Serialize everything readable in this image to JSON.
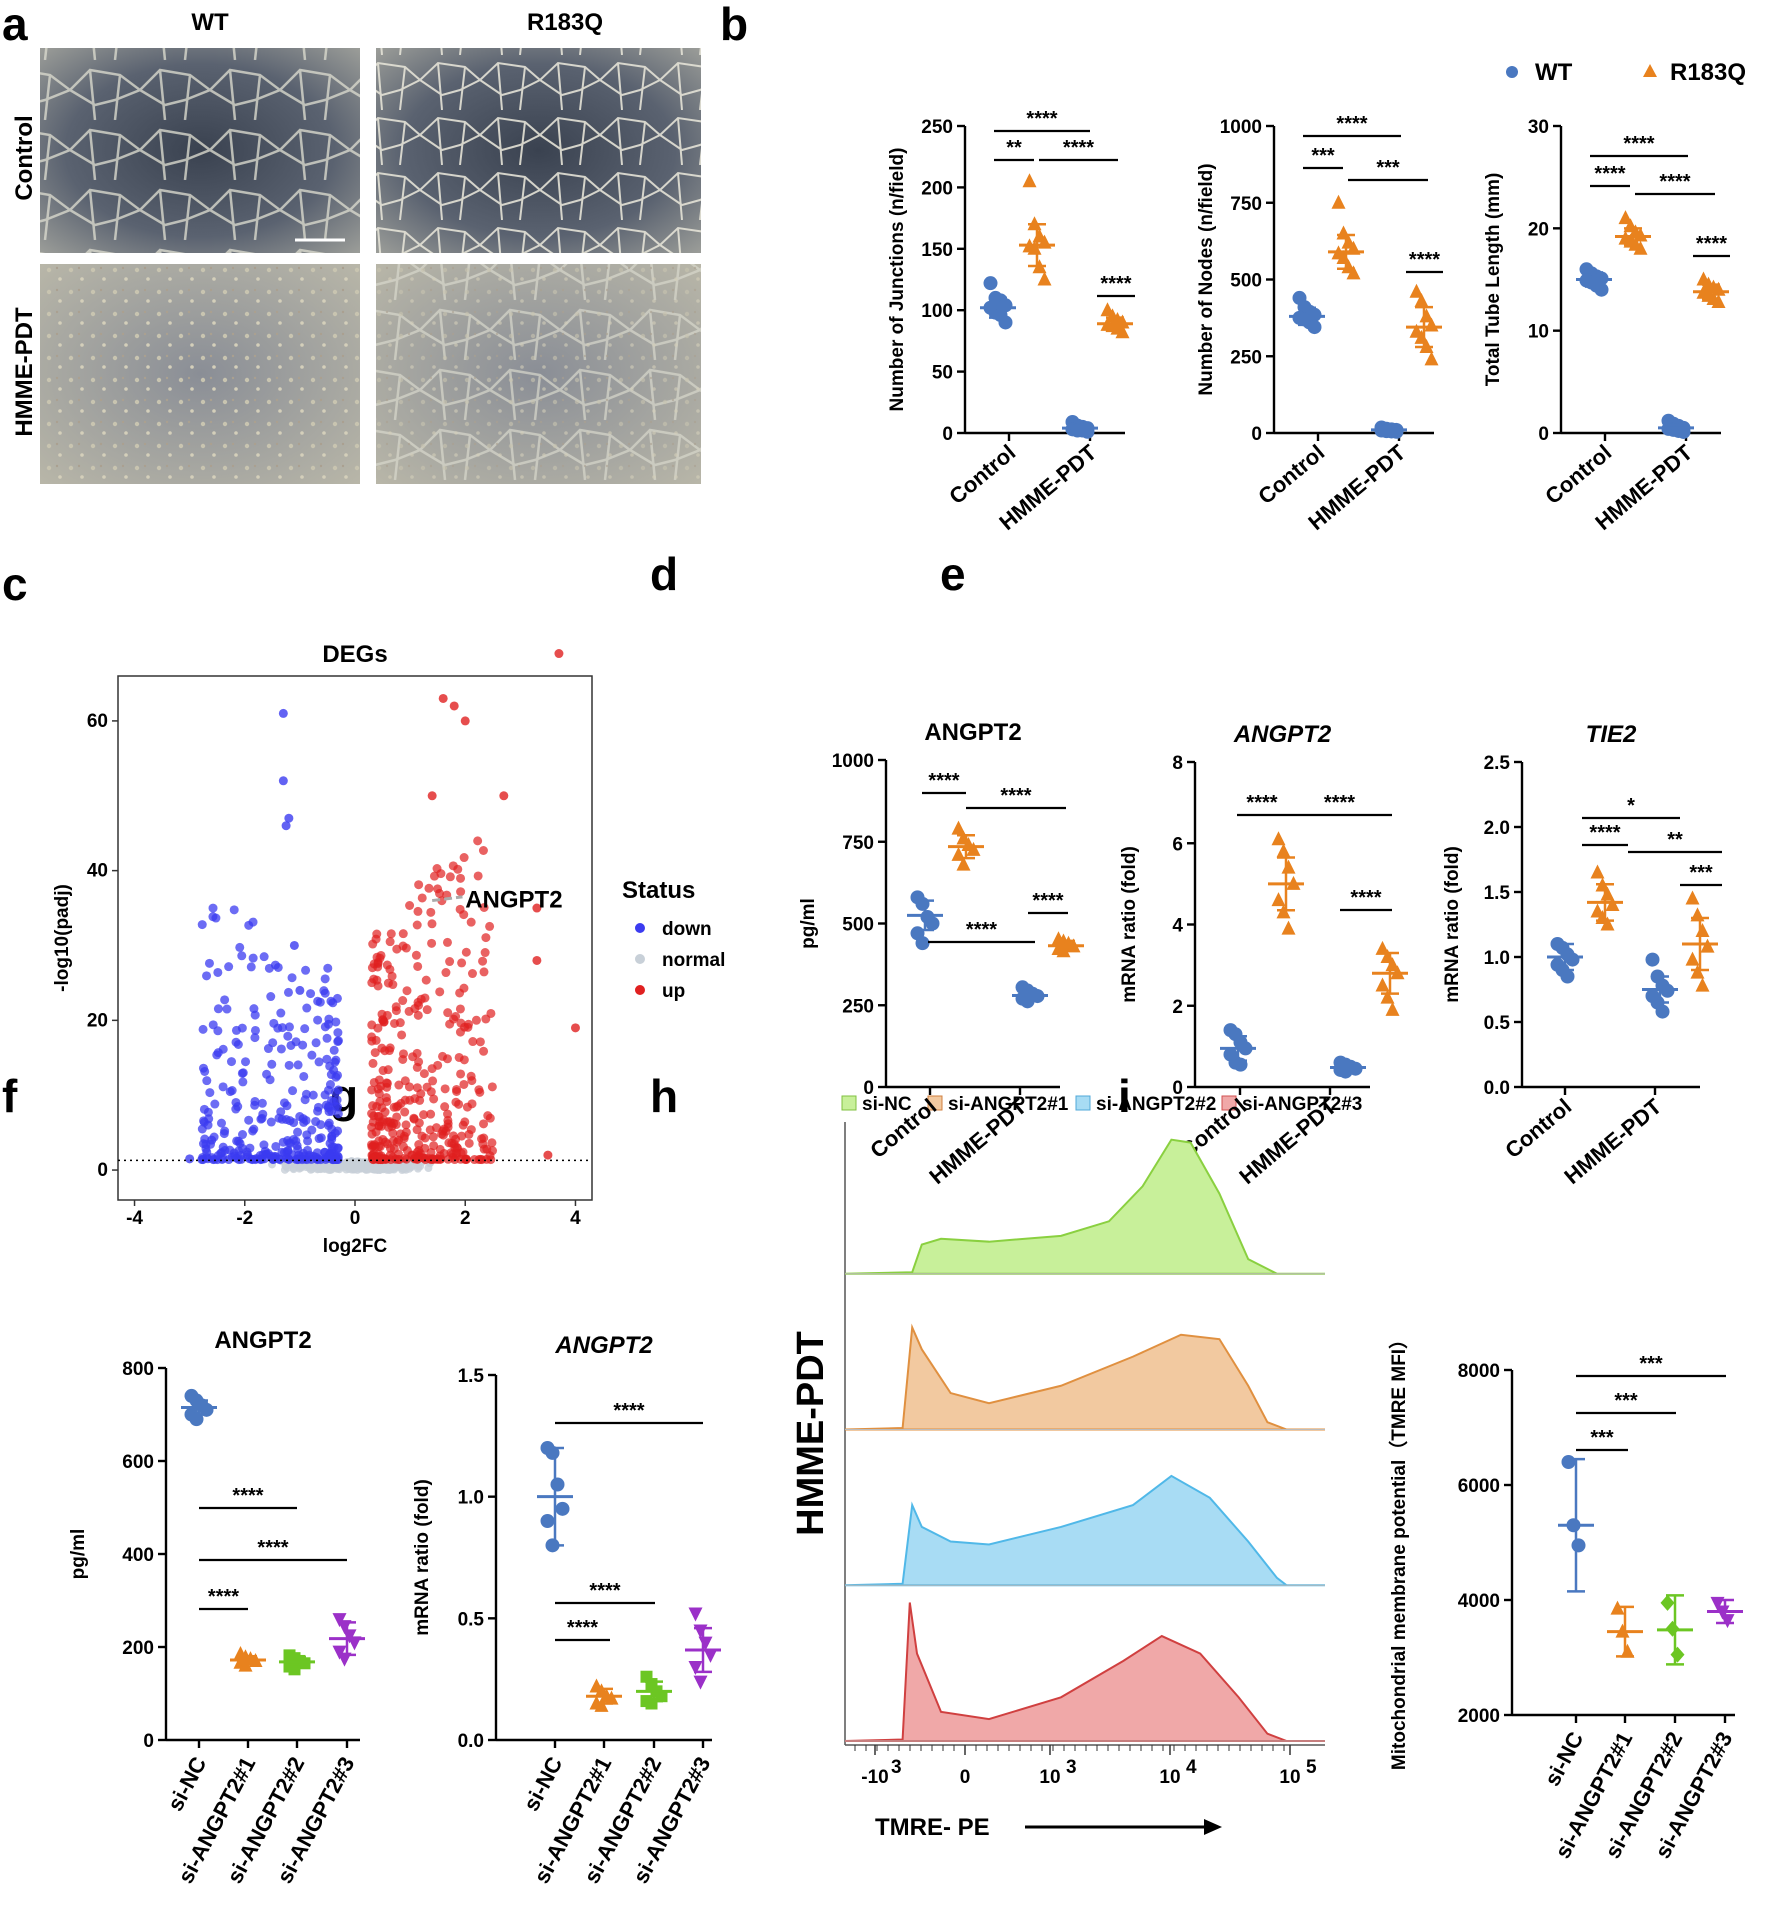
{
  "panel_labels": [
    "a",
    "b",
    "c",
    "d",
    "e",
    "f",
    "g",
    "h",
    "i"
  ],
  "colors": {
    "wt": "#4a78c0",
    "r183q": "#e8821e",
    "si_nc": "#4a78c0",
    "si1": "#e8821e",
    "si2": "#6cc623",
    "si3": "#9b30c8",
    "down": "#3b3bf0",
    "up": "#e02020",
    "normal": "#c8d0d8"
  },
  "micrographs": {
    "col_titles": [
      "WT",
      "R183Q"
    ],
    "row_titles": [
      "Control",
      "HMME-PDT"
    ]
  },
  "legend_b": {
    "wt": "WT",
    "r183q": "R183Q"
  },
  "legend_h": [
    "si-NC",
    "si-ANGPT2#1",
    "si-ANGPT2#2",
    "si-ANGPT2#3"
  ],
  "chart_data": [
    {
      "id": "b1",
      "type": "scatter",
      "title": "",
      "ylabel": "Number of Junctions (n/field)",
      "categories": [
        "Control",
        "HMME-PDT"
      ],
      "ylim": [
        0,
        250
      ],
      "yticks": [
        0,
        50,
        100,
        150,
        200,
        250
      ],
      "series": [
        {
          "name": "WT",
          "group": 0,
          "mean": 102,
          "sd": 8,
          "points": [
            122,
            110,
            108,
            104,
            102,
            98,
            96,
            90
          ]
        },
        {
          "name": "R183Q",
          "group": 0,
          "mean": 153,
          "sd": 17,
          "points": [
            205,
            170,
            160,
            155,
            152,
            150,
            135,
            125
          ]
        },
        {
          "name": "WT",
          "group": 1,
          "mean": 4,
          "sd": 2,
          "points": [
            9,
            6,
            5,
            4,
            3,
            2,
            2,
            1
          ]
        },
        {
          "name": "R183Q",
          "group": 1,
          "mean": 89,
          "sd": 5,
          "points": [
            100,
            95,
            92,
            90,
            88,
            87,
            85,
            82
          ]
        }
      ],
      "sig": [
        {
          "label": "**"
        },
        {
          "label": "****"
        },
        {
          "label": "****"
        },
        {
          "label": "****"
        }
      ]
    },
    {
      "id": "b2",
      "type": "scatter",
      "title": "",
      "ylabel": "Number of Nodes (n/field)",
      "categories": [
        "Control",
        "HMME-PDT"
      ],
      "ylim": [
        0,
        1000
      ],
      "yticks": [
        0,
        250,
        500,
        750,
        1000
      ],
      "series": [
        {
          "name": "WT",
          "group": 0,
          "mean": 380,
          "sd": 28,
          "points": [
            440,
            410,
            395,
            385,
            375,
            370,
            360,
            345
          ]
        },
        {
          "name": "R183Q",
          "group": 0,
          "mean": 590,
          "sd": 55,
          "points": [
            750,
            650,
            620,
            600,
            585,
            570,
            540,
            520
          ]
        },
        {
          "name": "WT",
          "group": 1,
          "mean": 10,
          "sd": 5,
          "points": [
            18,
            14,
            12,
            10,
            8,
            6,
            5,
            4
          ]
        },
        {
          "name": "R183Q",
          "group": 1,
          "mean": 345,
          "sd": 65,
          "points": [
            460,
            430,
            380,
            350,
            330,
            310,
            280,
            240
          ]
        }
      ],
      "sig": [
        {
          "label": "***"
        },
        {
          "label": "****"
        },
        {
          "label": "***"
        },
        {
          "label": "****"
        }
      ]
    },
    {
      "id": "b3",
      "type": "scatter",
      "title": "",
      "ylabel": "Total Tube Length (mm)",
      "categories": [
        "Control",
        "HMME-PDT"
      ],
      "ylim": [
        0,
        30
      ],
      "yticks": [
        0,
        10,
        20,
        30
      ],
      "series": [
        {
          "name": "WT",
          "group": 0,
          "mean": 15,
          "sd": 0.7,
          "points": [
            16,
            15.6,
            15.3,
            15.1,
            14.9,
            14.7,
            14.4,
            14
          ]
        },
        {
          "name": "R183Q",
          "group": 0,
          "mean": 19.2,
          "sd": 0.8,
          "points": [
            21,
            20.2,
            19.6,
            19.3,
            19,
            18.7,
            18.4,
            18
          ]
        },
        {
          "name": "WT",
          "group": 1,
          "mean": 0.5,
          "sd": 0.3,
          "points": [
            1.2,
            0.9,
            0.7,
            0.5,
            0.4,
            0.3,
            0.2,
            0.1
          ]
        },
        {
          "name": "R183Q",
          "group": 1,
          "mean": 13.8,
          "sd": 0.7,
          "points": [
            15,
            14.5,
            14.2,
            14,
            13.7,
            13.4,
            13.1,
            12.8
          ]
        }
      ],
      "sig": [
        {
          "label": "****"
        },
        {
          "label": "****"
        },
        {
          "label": "****"
        },
        {
          "label": "****"
        }
      ]
    },
    {
      "id": "c",
      "type": "scatter",
      "title": "DEGs",
      "xlabel": "log2FC",
      "ylabel": "-log10(padj)",
      "xlim": [
        -4.3,
        4.3
      ],
      "ylim": [
        -4,
        66
      ],
      "xticks": [
        -4,
        -2,
        0,
        2,
        4
      ],
      "yticks": [
        0,
        20,
        40,
        60
      ],
      "legend_title": "Status",
      "legend": [
        "down",
        "normal",
        "up"
      ],
      "annotation": "ANGPT2",
      "threshold": 1.3
    },
    {
      "id": "d",
      "type": "scatter",
      "title": "ANGPT2",
      "ylabel": "pg/ml",
      "categories": [
        "Control",
        "HMME-PDT"
      ],
      "ylim": [
        0,
        1000
      ],
      "yticks": [
        0,
        250,
        500,
        750,
        1000
      ],
      "series": [
        {
          "name": "WT",
          "group": 0,
          "mean": 525,
          "sd": 45,
          "points": [
            580,
            560,
            520,
            500,
            470,
            440
          ]
        },
        {
          "name": "R183Q",
          "group": 0,
          "mean": 735,
          "sd": 35,
          "points": [
            790,
            760,
            740,
            725,
            710,
            680
          ]
        },
        {
          "name": "WT",
          "group": 1,
          "mean": 280,
          "sd": 15,
          "points": [
            305,
            295,
            285,
            278,
            270,
            262
          ]
        },
        {
          "name": "R183Q",
          "group": 1,
          "mean": 432,
          "sd": 15,
          "points": [
            452,
            445,
            438,
            430,
            422,
            415
          ]
        }
      ],
      "sig": [
        {
          "label": "****"
        },
        {
          "label": "****"
        },
        {
          "label": "****"
        },
        {
          "label": "****"
        }
      ]
    },
    {
      "id": "e1",
      "type": "scatter",
      "title": "ANGPT2",
      "ylabel": "mRNA ratio (fold)",
      "categories": [
        "Control",
        "HMME-PDT"
      ],
      "ylim": [
        0,
        8
      ],
      "yticks": [
        0,
        2,
        4,
        6,
        8
      ],
      "series": [
        {
          "name": "WT",
          "group": 0,
          "mean": 0.95,
          "sd": 0.3,
          "points": [
            1.4,
            1.3,
            1.1,
            0.95,
            0.8,
            0.6,
            0.55
          ]
        },
        {
          "name": "R183Q",
          "group": 0,
          "mean": 5.0,
          "sd": 0.65,
          "points": [
            6.1,
            5.8,
            5.4,
            5.0,
            4.6,
            4.3,
            3.9
          ]
        },
        {
          "name": "WT",
          "group": 1,
          "mean": 0.48,
          "sd": 0.08,
          "points": [
            0.6,
            0.55,
            0.5,
            0.45,
            0.42,
            0.38
          ]
        },
        {
          "name": "R183Q",
          "group": 1,
          "mean": 2.8,
          "sd": 0.5,
          "points": [
            3.4,
            3.2,
            3.0,
            2.8,
            2.5,
            2.2,
            1.9
          ]
        }
      ],
      "sig": [
        {
          "label": "****"
        },
        {
          "label": "****"
        },
        {
          "label": "****"
        }
      ]
    },
    {
      "id": "e2",
      "type": "scatter",
      "title": "TIE2",
      "ylabel": "mRNA ratio (fold)",
      "categories": [
        "Control",
        "HMME-PDT"
      ],
      "ylim": [
        0,
        2.5
      ],
      "yticks": [
        0,
        0.5,
        1.0,
        1.5,
        2.0,
        2.5
      ],
      "series": [
        {
          "name": "WT",
          "group": 0,
          "mean": 1.0,
          "sd": 0.1,
          "points": [
            1.1,
            1.07,
            1.02,
            0.98,
            0.94,
            0.9,
            0.85
          ]
        },
        {
          "name": "R183Q",
          "group": 0,
          "mean": 1.42,
          "sd": 0.14,
          "points": [
            1.65,
            1.55,
            1.48,
            1.4,
            1.35,
            1.3,
            1.25
          ]
        },
        {
          "name": "WT",
          "group": 1,
          "mean": 0.75,
          "sd": 0.1,
          "points": [
            0.98,
            0.85,
            0.78,
            0.74,
            0.7,
            0.65,
            0.58
          ]
        },
        {
          "name": "R183Q",
          "group": 1,
          "mean": 1.1,
          "sd": 0.2,
          "points": [
            1.45,
            1.32,
            1.2,
            1.08,
            0.98,
            0.88,
            0.78
          ]
        }
      ],
      "sig": [
        {
          "label": "*"
        },
        {
          "label": "****"
        },
        {
          "label": "**"
        },
        {
          "label": "***"
        }
      ]
    },
    {
      "id": "f",
      "type": "scatter",
      "title": "ANGPT2",
      "ylabel": "pg/ml",
      "categories": [
        "si-NC",
        "si-ANGPT2#1",
        "si-ANGPT2#2",
        "si-ANGPT2#3"
      ],
      "ylim": [
        0,
        800
      ],
      "yticks": [
        0,
        200,
        400,
        600,
        800
      ],
      "series": [
        {
          "name": "si-NC",
          "mean": 715,
          "sd": 15,
          "points": [
            740,
            730,
            720,
            710,
            700,
            690
          ]
        },
        {
          "name": "si-ANGPT2#1",
          "mean": 172,
          "sd": 8,
          "points": [
            185,
            178,
            174,
            170,
            166,
            160
          ]
        },
        {
          "name": "si-ANGPT2#2",
          "mean": 168,
          "sd": 10,
          "points": [
            182,
            176,
            170,
            165,
            158,
            152
          ]
        },
        {
          "name": "si-ANGPT2#3",
          "mean": 218,
          "sd": 35,
          "points": [
            260,
            245,
            225,
            210,
            190,
            175
          ]
        }
      ],
      "sig": [
        {
          "label": "****"
        },
        {
          "label": "****"
        },
        {
          "label": "****"
        }
      ]
    },
    {
      "id": "g",
      "type": "scatter",
      "title": "ANGPT2",
      "ylabel": "mRNA ratio (fold)",
      "categories": [
        "si-NC",
        "si-ANGPT2#1",
        "si-ANGPT2#2",
        "si-ANGPT2#3"
      ],
      "ylim": [
        0,
        1.5
      ],
      "yticks": [
        0,
        0.5,
        1.0,
        1.5
      ],
      "series": [
        {
          "name": "si-NC",
          "mean": 1.0,
          "sd": 0.2,
          "points": [
            1.2,
            1.18,
            1.05,
            0.95,
            0.9,
            0.8
          ]
        },
        {
          "name": "si-ANGPT2#1",
          "mean": 0.18,
          "sd": 0.03,
          "points": [
            0.22,
            0.2,
            0.18,
            0.17,
            0.15,
            0.14
          ]
        },
        {
          "name": "si-ANGPT2#2",
          "mean": 0.2,
          "sd": 0.04,
          "points": [
            0.26,
            0.23,
            0.2,
            0.18,
            0.16,
            0.15
          ]
        },
        {
          "name": "si-ANGPT2#3",
          "mean": 0.37,
          "sd": 0.09,
          "points": [
            0.52,
            0.45,
            0.4,
            0.35,
            0.3,
            0.24
          ]
        }
      ],
      "sig": [
        {
          "label": "****"
        },
        {
          "label": "****"
        },
        {
          "label": "****"
        }
      ]
    },
    {
      "id": "h",
      "type": "area",
      "title": "",
      "ylabel": "HMME-PDT",
      "xlabel": "TMRE- PE",
      "xticks": [
        "-10",
        "0",
        "10",
        "10",
        "10"
      ],
      "xtick_exps": [
        "3",
        "",
        "3",
        "4",
        "5"
      ],
      "series": [
        "si-NC",
        "si-ANGPT2#1",
        "si-ANGPT2#2",
        "si-ANGPT2#3"
      ]
    },
    {
      "id": "i",
      "type": "scatter",
      "title": "",
      "ylabel": "Mitochondrial membrane potential（TMRE MFI）",
      "categories": [
        "si-NC",
        "si-ANGPT2#1",
        "si-ANGPT2#2",
        "si-ANGPT2#3"
      ],
      "ylim": [
        2000,
        8000
      ],
      "yticks": [
        2000,
        4000,
        6000,
        8000
      ],
      "series": [
        {
          "name": "si-NC",
          "mean": 5300,
          "sd": 1150,
          "points": [
            6400,
            5300,
            4950
          ]
        },
        {
          "name": "si-ANGPT2#1",
          "mean": 3450,
          "sd": 430,
          "points": [
            3850,
            3450,
            3100
          ]
        },
        {
          "name": "si-ANGPT2#2",
          "mean": 3480,
          "sd": 600,
          "points": [
            3950,
            3500,
            3050
          ]
        },
        {
          "name": "si-ANGPT2#3",
          "mean": 3800,
          "sd": 200,
          "points": [
            3950,
            3800,
            3650
          ]
        }
      ],
      "sig": [
        {
          "label": "***"
        },
        {
          "label": "***"
        },
        {
          "label": "***"
        }
      ]
    }
  ]
}
